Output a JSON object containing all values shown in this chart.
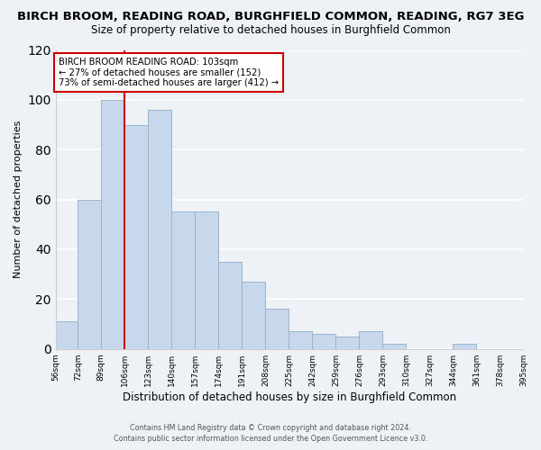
{
  "title": "BIRCH BROOM, READING ROAD, BURGHFIELD COMMON, READING, RG7 3EG",
  "subtitle": "Size of property relative to detached houses in Burghfield Common",
  "xlabel": "Distribution of detached houses by size in Burghfield Common",
  "ylabel": "Number of detached properties",
  "bin_edges": [
    56,
    72,
    89,
    106,
    123,
    140,
    157,
    174,
    191,
    208,
    225,
    242,
    259,
    276,
    293,
    310,
    327,
    344,
    361,
    378,
    395
  ],
  "bar_heights": [
    11,
    60,
    100,
    90,
    96,
    55,
    55,
    35,
    27,
    16,
    7,
    6,
    5,
    7,
    2,
    0,
    0,
    2,
    0,
    0
  ],
  "bar_color": "#c8d8ec",
  "bar_edgecolor": "#9ab4cc",
  "tick_labels": [
    "56sqm",
    "72sqm",
    "89sqm",
    "106sqm",
    "123sqm",
    "140sqm",
    "157sqm",
    "174sqm",
    "191sqm",
    "208sqm",
    "225sqm",
    "242sqm",
    "259sqm",
    "276sqm",
    "293sqm",
    "310sqm",
    "327sqm",
    "344sqm",
    "361sqm",
    "378sqm",
    "395sqm"
  ],
  "ylim": [
    0,
    120
  ],
  "yticks": [
    0,
    20,
    40,
    60,
    80,
    100,
    120
  ],
  "vline_x": 106,
  "vline_color": "#cc0000",
  "annotation_title": "BIRCH BROOM READING ROAD: 103sqm",
  "annotation_line1": "← 27% of detached houses are smaller (152)",
  "annotation_line2": "73% of semi-detached houses are larger (412) →",
  "footer_line1": "Contains HM Land Registry data © Crown copyright and database right 2024.",
  "footer_line2": "Contains public sector information licensed under the Open Government Licence v3.0.",
  "bg_color": "#eef2f7",
  "plot_bg_color": "#eef2f7",
  "grid_color": "#ffffff",
  "title_fontsize": 9.5,
  "subtitle_fontsize": 8.5,
  "xlabel_fontsize": 8.5,
  "ylabel_fontsize": 8
}
